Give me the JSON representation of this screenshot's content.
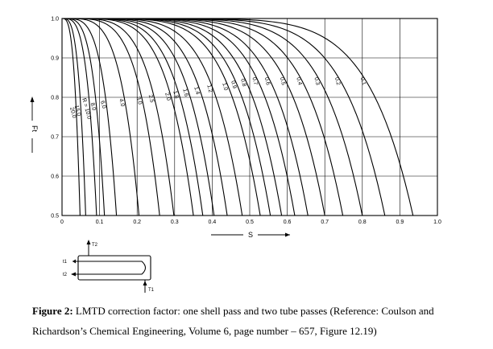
{
  "chart_data": {
    "type": "line",
    "xlabel": "S",
    "ylabel": "Ft",
    "xlim": [
      0,
      1.0
    ],
    "ylim": [
      0.5,
      1.0
    ],
    "x_ticks": [
      "0",
      "0.1",
      "0.2",
      "0.3",
      "0.4",
      "0.5",
      "0.6",
      "0.7",
      "0.8",
      "0.9",
      "1.0"
    ],
    "y_ticks": [
      "0.5",
      "0.6",
      "0.7",
      "0.8",
      "0.9",
      "1.0"
    ],
    "grid": true,
    "series_parameter": "R",
    "series": [
      {
        "name": "20.0",
        "s_max": 0.048
      },
      {
        "name": "15.0",
        "s_max": 0.063
      },
      {
        "name": "R = 10.0",
        "s_max": 0.092
      },
      {
        "name": "8.0",
        "s_max": 0.113
      },
      {
        "name": "6.0",
        "s_max": 0.145
      },
      {
        "name": "4.0",
        "s_max": 0.205
      },
      {
        "name": "3.0",
        "s_max": 0.26
      },
      {
        "name": "2.5",
        "s_max": 0.298
      },
      {
        "name": "2.0",
        "s_max": 0.35
      },
      {
        "name": "1.8",
        "s_max": 0.375
      },
      {
        "name": "1.6",
        "s_max": 0.405
      },
      {
        "name": "1.4",
        "s_max": 0.44
      },
      {
        "name": "1.2",
        "s_max": 0.48
      },
      {
        "name": "1.0",
        "s_max": 0.528
      },
      {
        "name": "0.9",
        "s_max": 0.555
      },
      {
        "name": "0.8",
        "s_max": 0.585
      },
      {
        "name": "0.7",
        "s_max": 0.62
      },
      {
        "name": "0.6",
        "s_max": 0.655
      },
      {
        "name": "0.5",
        "s_max": 0.7
      },
      {
        "name": "0.4",
        "s_max": 0.748
      },
      {
        "name": "0.3",
        "s_max": 0.8
      },
      {
        "name": "0.2",
        "s_max": 0.86
      },
      {
        "name": "0.1",
        "s_max": 0.935
      }
    ]
  },
  "schematic": {
    "labels": [
      "T2",
      "t1",
      "t2",
      "T1"
    ]
  },
  "caption": {
    "figure_label": "Figure 2:",
    "text": "LMTD correction factor: one shell pass and two tube passes (Reference: Coulson and Richardson’s Chemical Engineering, Volume 6, page number – 657, Figure 12.19)"
  }
}
